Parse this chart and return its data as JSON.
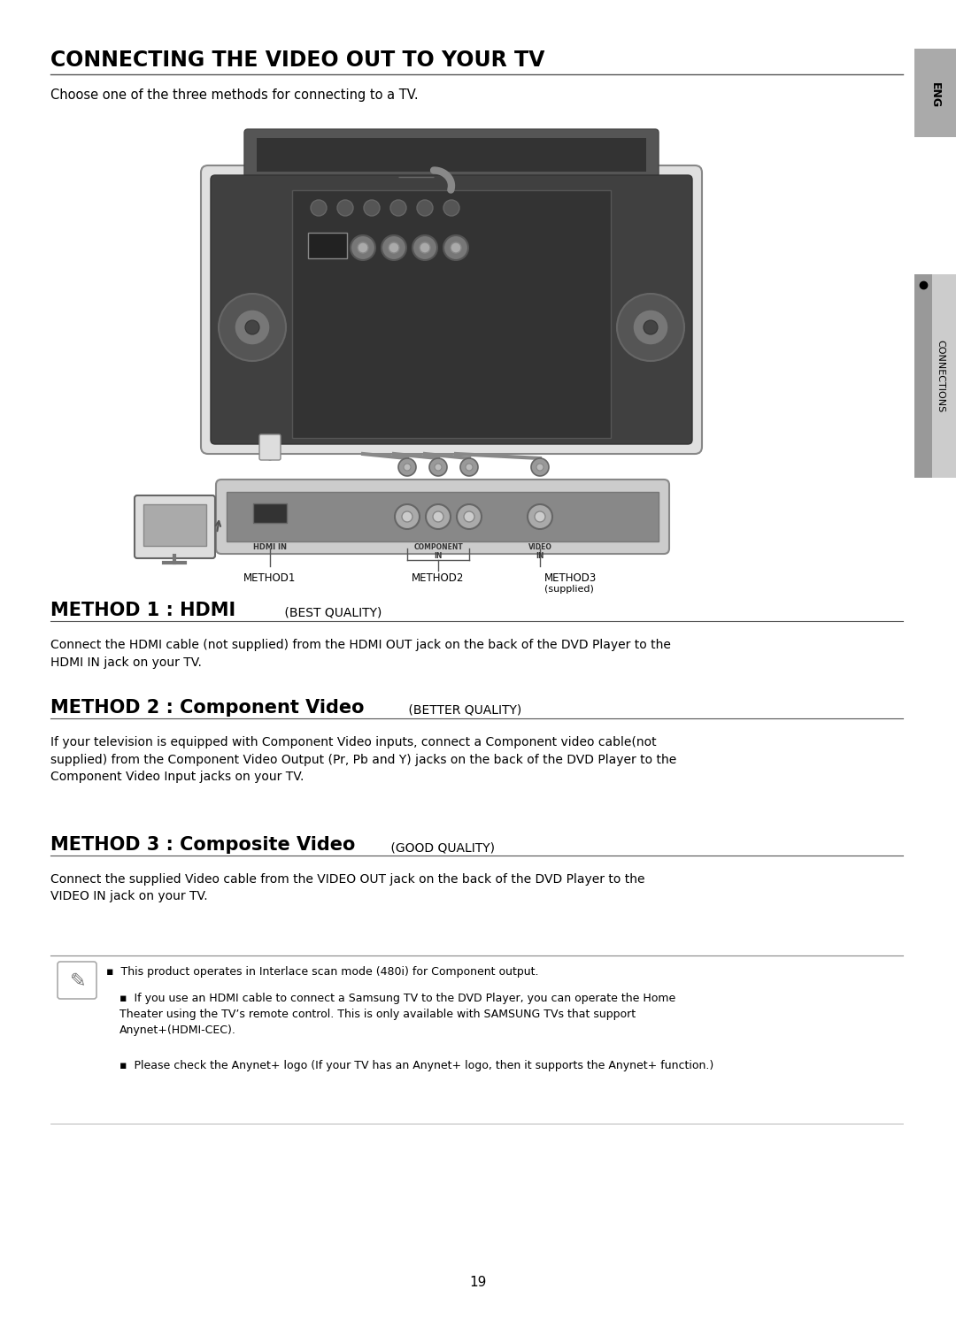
{
  "title": "CONNECTING THE VIDEO OUT TO YOUR TV",
  "subtitle": "Choose one of the three methods for connecting to a TV.",
  "sidebar_top_text": "ENG",
  "sidebar_bottom_text": "CONNECTIONS",
  "method1_bold": "METHOD 1 : HDMI",
  "method1_light": " (BEST QUALITY)",
  "method1_desc": "Connect the HDMI cable (not supplied) from the HDMI OUT jack on the back of the DVD Player to the\nHDMI IN jack on your TV.",
  "method2_bold": "METHOD 2 : Component Video",
  "method2_light": " (BETTER QUALITY)",
  "method2_desc": "If your television is equipped with Component Video inputs, connect a Component video cable(not\nsupplied) from the Component Video Output (Pr, Pb and Y) jacks on the back of the DVD Player to the\nComponent Video Input jacks on your TV.",
  "method3_bold": "METHOD 3 : Composite Video",
  "method3_light": " (GOOD QUALITY)",
  "method3_desc": "Connect the supplied Video cable from the VIDEO OUT jack on the back of the DVD Player to the\nVIDEO IN jack on your TV.",
  "note1": "This product operates in Interlace scan mode (480i) for Component output.",
  "note2": "If you use an HDMI cable to connect a Samsung TV to the DVD Player, you can operate the Home\nTheater using the TV’s remote control. This is only available with SAMSUNG TVs that support\nAnynet+(HDMI-CEC).",
  "note3": "Please check the Anynet+ logo (If your TV has an Anynet+ logo, then it supports the Anynet+ function.)",
  "method1_label": "METHOD1",
  "method2_label": "METHOD2",
  "method3_label": "METHOD3",
  "method3_sublabel": "(supplied)",
  "hdmi_in_label": "HDMI IN",
  "component_in_label": "COMPONENT\nIN",
  "video_in_label": "VIDEO\nIN",
  "bg_color": "#ffffff",
  "page_number": "19"
}
